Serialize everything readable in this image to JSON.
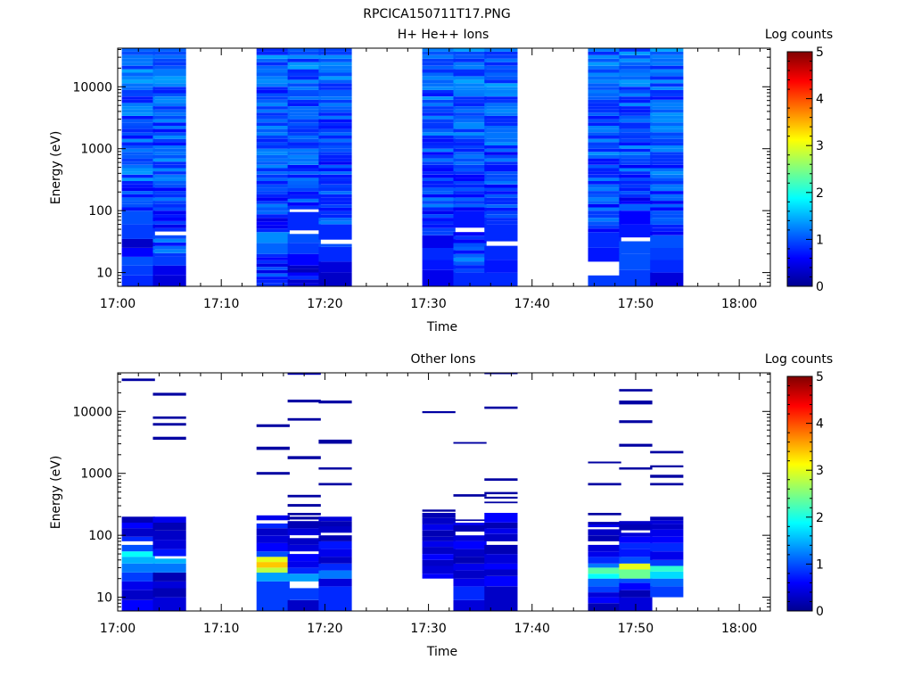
{
  "figure_title": "RPCICA150711T17.PNG",
  "colorbar": {
    "label": "Log counts",
    "ticks": [
      "0",
      "1",
      "2",
      "3",
      "4",
      "5"
    ],
    "colors": [
      "#00008f",
      "#0000ff",
      "#00ffff",
      "#ffff00",
      "#ff0000",
      "#800000"
    ]
  },
  "chart_data": [
    {
      "type": "heatmap",
      "title": "H+ He++ Ions",
      "xlabel": "Time",
      "ylabel": "Energy (eV)",
      "x_ticks": [
        "17:00",
        "17:10",
        "17:20",
        "17:30",
        "17:40",
        "17:50",
        "18:00"
      ],
      "y_ticks": [
        "10",
        "100",
        "1000",
        "10000"
      ],
      "y_scale": "log",
      "xlim": [
        "17:00",
        "18:03"
      ],
      "ylim": [
        6,
        42000
      ],
      "column_times": [
        "17:02",
        "17:05",
        "17:15",
        "17:18",
        "17:21",
        "17:31",
        "17:34",
        "17:37",
        "17:47",
        "17:50",
        "17:53"
      ],
      "column_width_min": 3.2,
      "cells": [
        [
          [
            "6-9",
            0.8
          ],
          [
            "9-13",
            0.9
          ],
          [
            "13-18",
            1.0
          ],
          [
            "18-25",
            0.6
          ],
          [
            "25-35",
            0.3
          ],
          [
            "35-60",
            0.9
          ],
          [
            "60-100",
            1.0
          ],
          [
            "100-300",
            0.9
          ],
          [
            "300-1000",
            1.1
          ],
          [
            "1000-3000",
            1.0
          ],
          [
            "3000-10000",
            1.0
          ],
          [
            "10000-42000",
            1.1
          ]
        ],
        [
          [
            "6-9",
            0.4
          ],
          [
            "9-13",
            0.5
          ],
          [
            "13-18",
            0.9
          ],
          [
            "18-40",
            1.0
          ],
          [
            "46-100",
            0.8
          ],
          [
            "100-300",
            0.9
          ],
          [
            "300-1000",
            1.0
          ],
          [
            "1000-3000",
            1.0
          ],
          [
            "3000-10000",
            1.0
          ],
          [
            "10000-42000",
            1.1
          ]
        ],
        [
          [
            "6-20",
            0.8
          ],
          [
            "20-30",
            1.1
          ],
          [
            "30-45",
            1.3
          ],
          [
            "45-100",
            0.8
          ],
          [
            "100-300",
            0.9
          ],
          [
            "300-1000",
            1.0
          ],
          [
            "1000-3000",
            1.0
          ],
          [
            "3000-10000",
            1.0
          ],
          [
            "10000-42000",
            1.1
          ]
        ],
        [
          [
            "6-13",
            0.5
          ],
          [
            "13-20",
            0.6
          ],
          [
            "20-30",
            0.9
          ],
          [
            "30-42",
            1.0
          ],
          [
            "48-95",
            0.8
          ],
          [
            "105-300",
            0.9
          ],
          [
            "300-1000",
            0.9
          ],
          [
            "1000-3000",
            1.0
          ],
          [
            "3000-10000",
            1.0
          ],
          [
            "10000-42000",
            1.1
          ]
        ],
        [
          [
            "6-10",
            0.3
          ],
          [
            "10-15",
            0.4
          ],
          [
            "15-26",
            0.8
          ],
          [
            "26-29",
            1.0
          ],
          [
            "34-60",
            0.8
          ],
          [
            "60-300",
            0.9
          ],
          [
            "300-1000",
            0.9
          ],
          [
            "1000-3000",
            1.0
          ],
          [
            "3000-10000",
            1.0
          ],
          [
            "10000-42000",
            1.1
          ]
        ],
        [
          [
            "6-11",
            0.5
          ],
          [
            "11-16",
            0.7
          ],
          [
            "16-25",
            0.8
          ],
          [
            "25-40",
            0.5
          ],
          [
            "40-100",
            0.8
          ],
          [
            "100-300",
            0.9
          ],
          [
            "300-1000",
            0.9
          ],
          [
            "1000-3000",
            1.0
          ],
          [
            "3000-10000",
            1.0
          ],
          [
            "10000-42000",
            1.1
          ]
        ],
        [
          [
            "6-10",
            0.8
          ],
          [
            "10-20",
            1.0
          ],
          [
            "20-45",
            0.9
          ],
          [
            "53-100",
            0.7
          ],
          [
            "100-300",
            0.8
          ],
          [
            "300-1000",
            0.9
          ],
          [
            "1000-3000",
            1.0
          ],
          [
            "3000-10000",
            1.0
          ],
          [
            "10000-42000",
            1.1
          ]
        ],
        [
          [
            "6-10",
            0.8
          ],
          [
            "10-16",
            0.7
          ],
          [
            "16-27",
            0.8
          ],
          [
            "32-60",
            0.8
          ],
          [
            "60-300",
            0.9
          ],
          [
            "300-1000",
            0.9
          ],
          [
            "1000-3000",
            1.0
          ],
          [
            "3000-10000",
            1.0
          ],
          [
            "10000-42000",
            1.1
          ]
        ],
        [
          [
            "6-9",
            0.9
          ],
          [
            "15-25",
            0.7
          ],
          [
            "25-45",
            0.8
          ],
          [
            "45-100",
            0.9
          ],
          [
            "100-300",
            0.9
          ],
          [
            "300-1000",
            1.0
          ],
          [
            "1000-3000",
            1.0
          ],
          [
            "3000-10000",
            1.0
          ],
          [
            "10000-42000",
            1.1
          ]
        ],
        [
          [
            "6-11",
            0.9
          ],
          [
            "11-20",
            1.0
          ],
          [
            "20-32",
            1.0
          ],
          [
            "37-60",
            0.7
          ],
          [
            "60-100",
            0.6
          ],
          [
            "100-300",
            0.8
          ],
          [
            "300-1000",
            0.9
          ],
          [
            "1000-3000",
            1.0
          ],
          [
            "3000-10000",
            1.0
          ],
          [
            "10000-42000",
            1.1
          ]
        ],
        [
          [
            "6-10",
            0.4
          ],
          [
            "10-16",
            0.8
          ],
          [
            "16-25",
            0.9
          ],
          [
            "25-40",
            1.0
          ],
          [
            "40-100",
            0.9
          ],
          [
            "100-300",
            0.9
          ],
          [
            "300-1000",
            1.0
          ],
          [
            "1000-3000",
            1.0
          ],
          [
            "3000-10000",
            1.0
          ],
          [
            "10000-42000",
            1.1
          ]
        ]
      ]
    },
    {
      "type": "heatmap",
      "title": "Other Ions",
      "xlabel": "Time",
      "ylabel": "Energy (eV)",
      "x_ticks": [
        "17:00",
        "17:10",
        "17:20",
        "17:30",
        "17:40",
        "17:50",
        "18:00"
      ],
      "y_ticks": [
        "10",
        "100",
        "1000",
        "10000"
      ],
      "y_scale": "log",
      "xlim": [
        "17:00",
        "18:03"
      ],
      "ylim": [
        6,
        42000
      ],
      "column_times": [
        "17:02",
        "17:05",
        "17:15",
        "17:18",
        "17:21",
        "17:31",
        "17:34",
        "17:37",
        "17:47",
        "17:50",
        "17:53"
      ],
      "column_width_min": 3.2,
      "cells": [
        [
          [
            "6-9",
            0.6
          ],
          [
            "9-13",
            0.3
          ],
          [
            "13-18",
            0.5
          ],
          [
            "18-25",
            0.9
          ],
          [
            "25-35",
            1.2
          ],
          [
            "35-45",
            1.5
          ],
          [
            "45-55",
            1.9
          ],
          [
            "55-70",
            1.0
          ],
          [
            "80-95",
            0.8
          ],
          [
            "95-130",
            0.3
          ],
          [
            "130-160",
            0.6
          ],
          [
            "160-200",
            0.2
          ],
          [
            "31000-34000",
            0.1
          ]
        ],
        [
          [
            "6-10",
            0.4
          ],
          [
            "10-14",
            0.2
          ],
          [
            "14-18",
            0.4
          ],
          [
            "18-25",
            0.2
          ],
          [
            "25-35",
            1.2
          ],
          [
            "35-42",
            1.5
          ],
          [
            "46-60",
            0.7
          ],
          [
            "60-85",
            0.4
          ],
          [
            "85-120",
            0.3
          ],
          [
            "120-160",
            0.2
          ],
          [
            "160-200",
            0.5
          ],
          [
            "3500-3900",
            0.1
          ],
          [
            "5900-6500",
            0.1
          ],
          [
            "7600-8300",
            0.1
          ],
          [
            "18000-20000",
            0.1
          ]
        ],
        [
          [
            "6-18",
            0.9
          ],
          [
            "18-25",
            1.4
          ],
          [
            "25-30",
            2.8
          ],
          [
            "30-37",
            3.4
          ],
          [
            "37-45",
            3.0
          ],
          [
            "45-55",
            1.0
          ],
          [
            "55-75",
            0.6
          ],
          [
            "75-100",
            0.4
          ],
          [
            "100-130",
            0.3
          ],
          [
            "130-155",
            0.8
          ],
          [
            "175-210",
            0.5
          ],
          [
            "950-1050",
            0.1
          ],
          [
            "2400-2700",
            0.1
          ],
          [
            "5600-6200",
            0.1
          ]
        ],
        [
          [
            "6-9",
            0.3
          ],
          [
            "9-14",
            0.9
          ],
          [
            "18-24",
            1.4
          ],
          [
            "24-30",
            0.8
          ],
          [
            "30-38",
            0.5
          ],
          [
            "38-50",
            0.6
          ],
          [
            "55-70",
            0.4
          ],
          [
            "70-90",
            0.3
          ],
          [
            "100-130",
            0.4
          ],
          [
            "130-170",
            0.2
          ],
          [
            "180-200",
            0.1
          ],
          [
            "210-230",
            0.1
          ],
          [
            "290-320",
            0.1
          ],
          [
            "410-450",
            0.1
          ],
          [
            "1700-1900",
            0.1
          ],
          [
            "7100-7800",
            0.1
          ],
          [
            "14000-15500",
            0.1
          ],
          [
            "39000-42000",
            0.2
          ]
        ],
        [
          [
            "6-15",
            0.8
          ],
          [
            "15-20",
            0.4
          ],
          [
            "20-27",
            1.2
          ],
          [
            "27-35",
            0.8
          ],
          [
            "35-45",
            0.3
          ],
          [
            "45-60",
            0.5
          ],
          [
            "60-80",
            0.7
          ],
          [
            "80-100",
            0.2
          ],
          [
            "110-140",
            0.3
          ],
          [
            "140-170",
            0.2
          ],
          [
            "170-200",
            0.4
          ],
          [
            "640-700",
            0.1
          ],
          [
            "1150-1250",
            0.1
          ],
          [
            "3000-3500",
            0.1
          ],
          [
            "13500-15000",
            0.1
          ]
        ],
        [
          [
            "20-24",
            0.6
          ],
          [
            "24-32",
            0.4
          ],
          [
            "32-40",
            0.3
          ],
          [
            "40-50",
            0.6
          ],
          [
            "50-65",
            0.3
          ],
          [
            "65-80",
            0.5
          ],
          [
            "80-95",
            0.3
          ],
          [
            "95-120",
            0.2
          ],
          [
            "120-150",
            0.5
          ],
          [
            "150-190",
            0.3
          ],
          [
            "190-230",
            0.2
          ],
          [
            "240-260",
            0.1
          ],
          [
            "9400-10100",
            0.1
          ]
        ],
        [
          [
            "6-9",
            0.4
          ],
          [
            "9-15",
            0.8
          ],
          [
            "15-20",
            0.5
          ],
          [
            "20-27",
            0.3
          ],
          [
            "27-35",
            0.5
          ],
          [
            "35-45",
            0.2
          ],
          [
            "45-60",
            0.3
          ],
          [
            "60-80",
            0.6
          ],
          [
            "80-100",
            0.4
          ],
          [
            "115-145",
            0.2
          ],
          [
            "145-160",
            0.5
          ],
          [
            "170-180",
            0.1
          ],
          [
            "420-460",
            0.1
          ],
          [
            "3000-3200",
            0.1
          ]
        ],
        [
          [
            "6-15",
            0.3
          ],
          [
            "15-22",
            0.6
          ],
          [
            "22-28",
            0.3
          ],
          [
            "28-35",
            0.6
          ],
          [
            "35-50",
            0.4
          ],
          [
            "50-70",
            0.2
          ],
          [
            "80-105",
            0.3
          ],
          [
            "105-130",
            0.5
          ],
          [
            "130-160",
            0.2
          ],
          [
            "160-230",
            0.6
          ],
          [
            "330-350",
            0.1
          ],
          [
            "390-420",
            0.1
          ],
          [
            "460-500",
            0.1
          ],
          [
            "760-830",
            0.1
          ],
          [
            "11000-12000",
            0.1
          ],
          [
            "40000-42000",
            0.1
          ]
        ],
        [
          [
            "6-8",
            0.2
          ],
          [
            "8-10",
            0.6
          ],
          [
            "10-12",
            0.4
          ],
          [
            "12-15",
            0.9
          ],
          [
            "15-20",
            1.1
          ],
          [
            "20-24",
            1.9
          ],
          [
            "24-30",
            2.3
          ],
          [
            "30-35",
            1.2
          ],
          [
            "35-45",
            0.8
          ],
          [
            "45-55",
            0.5
          ],
          [
            "55-70",
            0.4
          ],
          [
            "80-100",
            0.2
          ],
          [
            "100-125",
            0.3
          ],
          [
            "135-150",
            0.5
          ],
          [
            "150-165",
            0.2
          ],
          [
            "210-230",
            0.1
          ],
          [
            "640-700",
            0.1
          ],
          [
            "1450-1550",
            0.1
          ]
        ],
        [
          [
            "6-10",
            0.4
          ],
          [
            "10-13",
            0.2
          ],
          [
            "13-17",
            0.6
          ],
          [
            "17-20",
            1.0
          ],
          [
            "20-28",
            2.4
          ],
          [
            "28-35",
            3.0
          ],
          [
            "35-45",
            1.0
          ],
          [
            "45-60",
            0.7
          ],
          [
            "60-75",
            0.8
          ],
          [
            "75-95",
            0.6
          ],
          [
            "95-110",
            0.4
          ],
          [
            "120-150",
            0.2
          ],
          [
            "150-170",
            0.3
          ],
          [
            "1150-1250",
            0.1
          ],
          [
            "2700-3000",
            0.1
          ],
          [
            "6500-7200",
            0.1
          ],
          [
            "13000-15000",
            0.1
          ],
          [
            "21000-23000",
            0.1
          ]
        ],
        [
          [
            "10-15",
            0.9
          ],
          [
            "15-20",
            1.1
          ],
          [
            "20-26",
            1.7
          ],
          [
            "26-32",
            2.1
          ],
          [
            "32-40",
            0.9
          ],
          [
            "40-55",
            0.5
          ],
          [
            "55-75",
            0.8
          ],
          [
            "75-95",
            0.6
          ],
          [
            "95-125",
            0.5
          ],
          [
            "125-150",
            0.3
          ],
          [
            "150-175",
            0.4
          ],
          [
            "175-200",
            0.2
          ],
          [
            "640-700",
            0.1
          ],
          [
            "850-950",
            0.1
          ],
          [
            "1250-1350",
            0.1
          ],
          [
            "2100-2300",
            0.1
          ]
        ]
      ]
    }
  ]
}
